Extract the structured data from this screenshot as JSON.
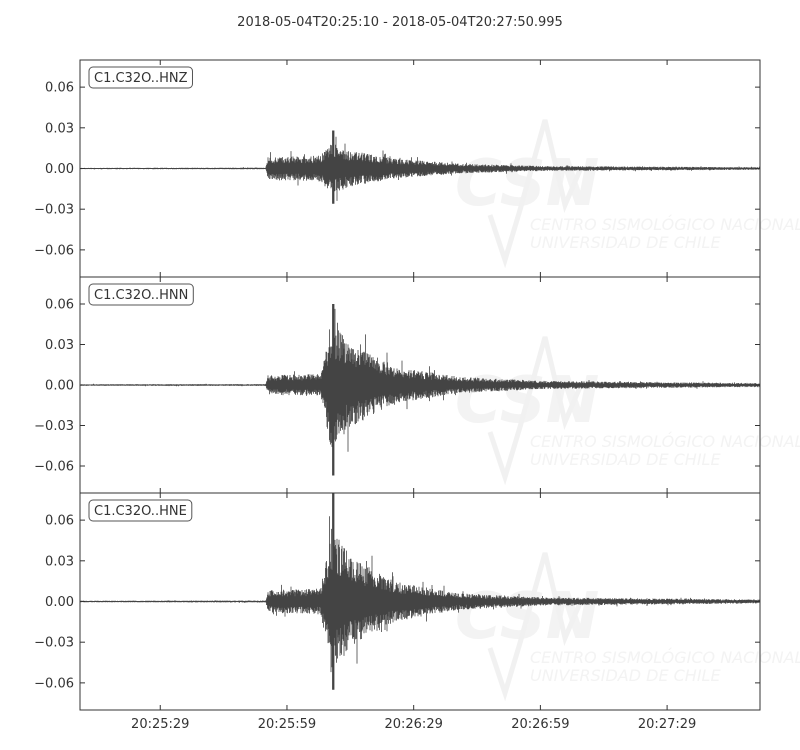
{
  "chart_data": {
    "type": "line",
    "title": "2018-05-04T20:25:10  -  2018-05-04T20:27:50.995",
    "xlim": [
      "20:25:10",
      "20:27:50.995"
    ],
    "ylim": [
      -0.08,
      0.08
    ],
    "x_ticks": [
      "20:25:29",
      "20:25:59",
      "20:26:29",
      "20:26:59",
      "20:27:29"
    ],
    "y_ticks": [
      0.06,
      0.03,
      0.0,
      -0.03,
      -0.06
    ],
    "y_tick_labels": [
      "0.06",
      "0.03",
      "0.00",
      "−0.03",
      "−0.06"
    ],
    "grid": false,
    "line_color": "#444444",
    "watermark": {
      "logo": "CSN",
      "line1": "CENTRO SISMOLÓGICO NACIONAL",
      "line2": "UNIVERSIDAD DE CHILE"
    },
    "series": [
      {
        "name": "C1.C32O..HNZ",
        "envelope": [
          [
            "20:25:10",
            0.0004
          ],
          [
            "20:25:54",
            0.0005
          ],
          [
            "20:25:54.5",
            0.007
          ],
          [
            "20:26:07",
            0.008
          ],
          [
            "20:26:09.5",
            0.016
          ],
          [
            "20:26:14",
            0.011
          ],
          [
            "20:26:25",
            0.006
          ],
          [
            "20:26:40",
            0.003
          ],
          [
            "20:27:00",
            0.0015
          ],
          [
            "20:27:50.995",
            0.0008
          ]
        ],
        "max": 0.028,
        "min": -0.026,
        "peak_time": "20:26:10"
      },
      {
        "name": "C1.C32O..HNN",
        "envelope": [
          [
            "20:25:10",
            0.0005
          ],
          [
            "20:25:54",
            0.0006
          ],
          [
            "20:25:54.5",
            0.006
          ],
          [
            "20:26:07",
            0.007
          ],
          [
            "20:26:09.5",
            0.04
          ],
          [
            "20:26:14",
            0.026
          ],
          [
            "20:26:25",
            0.011
          ],
          [
            "20:26:40",
            0.005
          ],
          [
            "20:27:00",
            0.0025
          ],
          [
            "20:27:50.995",
            0.0012
          ]
        ],
        "max": 0.06,
        "min": -0.067,
        "peak_time": "20:26:10"
      },
      {
        "name": "C1.C32O..HNE",
        "envelope": [
          [
            "20:25:10",
            0.0005
          ],
          [
            "20:25:54",
            0.0006
          ],
          [
            "20:25:54.5",
            0.007
          ],
          [
            "20:26:07",
            0.008
          ],
          [
            "20:26:09.5",
            0.045
          ],
          [
            "20:26:14",
            0.028
          ],
          [
            "20:26:25",
            0.012
          ],
          [
            "20:26:40",
            0.005
          ],
          [
            "20:27:00",
            0.0025
          ],
          [
            "20:27:50.995",
            0.0012
          ]
        ],
        "max": 0.08,
        "min": -0.065,
        "peak_time": "20:26:10"
      }
    ]
  }
}
